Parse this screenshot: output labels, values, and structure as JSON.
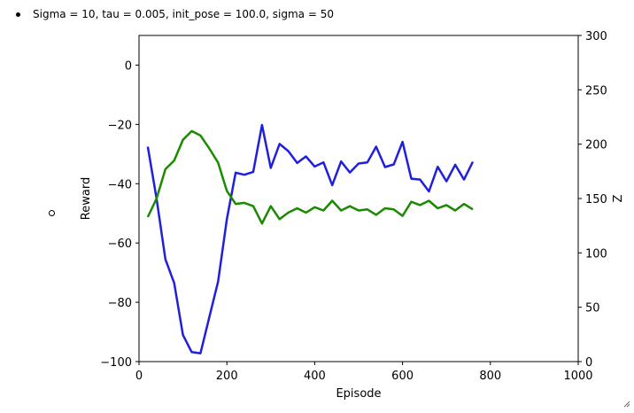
{
  "bullet_text": "Sigma = 10, tau = 0.005, init_pose = 100.0, sigma = 50",
  "chart_data": {
    "type": "line",
    "title": "",
    "xlabel": "Episode",
    "ylabel": "Reward",
    "y2label": "Z",
    "xlim": [
      0,
      1000
    ],
    "ylim": [
      -100,
      10
    ],
    "y2lim": [
      0,
      300
    ],
    "xticks": [
      0,
      200,
      400,
      600,
      800,
      1000
    ],
    "yticks": [
      0,
      -20,
      -40,
      -60,
      -80,
      -100
    ],
    "y2ticks": [
      0,
      50,
      100,
      150,
      200,
      250,
      300
    ],
    "grid": false,
    "series": [
      {
        "axis": "left",
        "color": "#1f1fdd",
        "x": [
          20,
          40,
          60,
          80,
          100,
          120,
          140,
          160,
          180,
          200,
          220,
          240,
          260,
          280,
          300,
          320,
          340,
          360,
          380,
          400,
          420,
          440,
          460,
          480,
          500,
          520,
          540,
          560,
          580,
          600,
          620,
          640,
          660,
          680,
          700,
          720,
          740,
          760
        ],
        "values": [
          -27.5,
          -45,
          -65.5,
          -73.5,
          -91,
          -96.8,
          -97.2,
          -85,
          -73,
          -52,
          -36.3,
          -37,
          -36,
          -20.2,
          -34.7,
          -26.6,
          -29,
          -33,
          -30.8,
          -34.2,
          -32.8,
          -40.5,
          -32.5,
          -36.2,
          -33.2,
          -32.8,
          -27.5,
          -34.4,
          -33.5,
          -25.9,
          -38.3,
          -38.6,
          -42.6,
          -34.3,
          -39.2,
          -33.6,
          -38.6,
          -32.6
        ]
      },
      {
        "axis": "right",
        "color": "#1a8a00",
        "x": [
          20,
          40,
          60,
          80,
          100,
          120,
          140,
          160,
          180,
          200,
          220,
          240,
          260,
          280,
          300,
          320,
          340,
          360,
          380,
          400,
          420,
          440,
          460,
          480,
          500,
          520,
          540,
          560,
          580,
          600,
          620,
          640,
          660,
          680,
          700,
          720,
          740,
          760
        ],
        "values": [
          133,
          150,
          177,
          185,
          204,
          212,
          208,
          196,
          183,
          157,
          145,
          146,
          143,
          127,
          143,
          131,
          137,
          141,
          137,
          142,
          139,
          148,
          139,
          143,
          139,
          140,
          135,
          141,
          140,
          134,
          147,
          144,
          148,
          141,
          144,
          139,
          145,
          140
        ]
      }
    ]
  }
}
